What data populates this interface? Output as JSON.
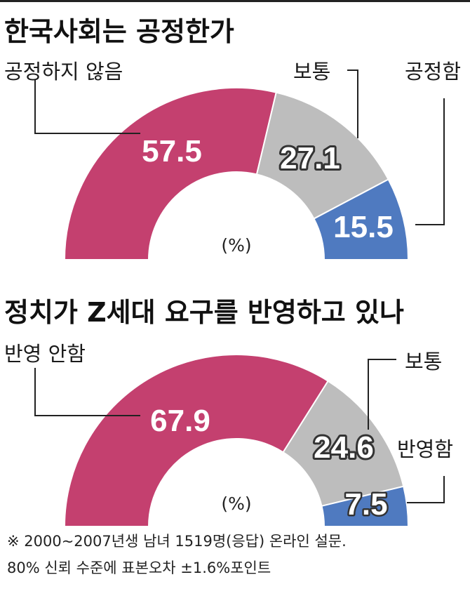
{
  "chart_data": [
    {
      "type": "pie",
      "variant": "semi-donut",
      "title": "한국사회는 공정한가",
      "unit": "(%)",
      "categories": [
        "공정하지 않음",
        "보통",
        "공정함"
      ],
      "values": [
        57.5,
        27.1,
        15.5
      ],
      "value_labels": [
        "57.5",
        "27.1",
        "15.5"
      ],
      "colors": [
        "#c4406f",
        "#bdbdbd",
        "#4f7ac0"
      ]
    },
    {
      "type": "pie",
      "variant": "semi-donut",
      "title": "정치가 Z세대 요구를 반영하고 있나",
      "unit": "(%)",
      "categories": [
        "반영 안함",
        "보통",
        "반영함"
      ],
      "values": [
        67.9,
        24.6,
        7.5
      ],
      "value_labels": [
        "67.9",
        "24.6",
        "7.5"
      ],
      "colors": [
        "#c4406f",
        "#bdbdbd",
        "#4f7ac0"
      ]
    }
  ],
  "note": {
    "line1": "※ 2000~2007년생 남녀 1519명(응답) 온라인 설문.",
    "line2": "80% 신뢰 수준에 표본오차 ±1.6%포인트"
  }
}
